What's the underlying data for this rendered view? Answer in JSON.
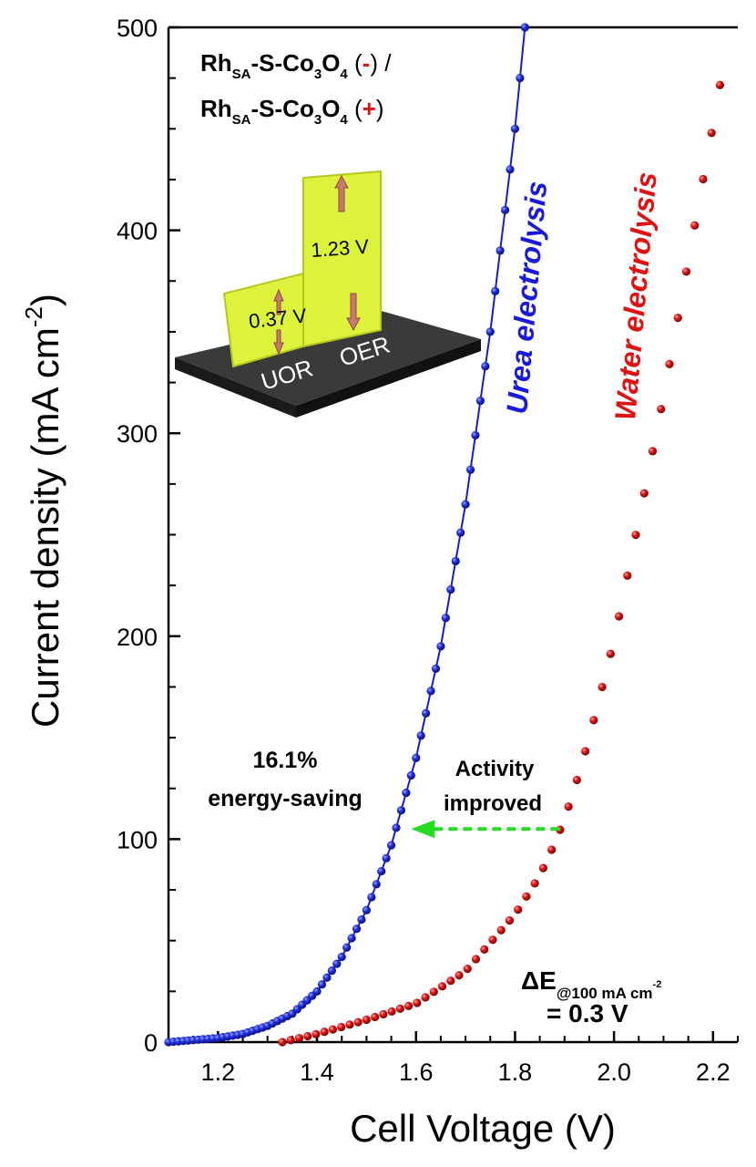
{
  "chart_data": {
    "type": "scatter",
    "xlabel": "Cell Voltage (V)",
    "ylabel_main": "Current density (mA cm",
    "ylabel_sup": "-2",
    "ylabel_end": ")",
    "xlim": [
      1.1,
      2.25
    ],
    "ylim": [
      0,
      500
    ],
    "xticks": [
      1.2,
      1.4,
      1.6,
      1.8,
      2.0,
      2.2
    ],
    "xtick_labels": [
      "1.2",
      "1.4",
      "1.6",
      "1.8",
      "2.0",
      "2.2"
    ],
    "yticks": [
      0,
      100,
      200,
      300,
      400,
      500
    ],
    "ytick_labels": [
      "0",
      "100",
      "200",
      "300",
      "400",
      "500"
    ],
    "series": [
      {
        "name": "Urea electrolysis",
        "color": "#1a1adc",
        "connected": true,
        "curve": [
          [
            1.1,
            0
          ],
          [
            1.2,
            2
          ],
          [
            1.25,
            4
          ],
          [
            1.3,
            8
          ],
          [
            1.35,
            14
          ],
          [
            1.4,
            25
          ],
          [
            1.45,
            42
          ],
          [
            1.5,
            65
          ],
          [
            1.55,
            97
          ],
          [
            1.6,
            140
          ],
          [
            1.65,
            195
          ],
          [
            1.7,
            265
          ],
          [
            1.75,
            350
          ],
          [
            1.8,
            450
          ],
          [
            1.82,
            500
          ]
        ],
        "start": 1.1,
        "end": 1.82,
        "step": 0.01
      },
      {
        "name": "Water electrolysis",
        "color": "#e01212",
        "connected": false,
        "curve": [
          [
            1.33,
            0
          ],
          [
            1.4,
            4
          ],
          [
            1.5,
            11
          ],
          [
            1.6,
            19
          ],
          [
            1.7,
            35
          ],
          [
            1.8,
            63
          ],
          [
            1.85,
            82
          ],
          [
            1.88,
            98
          ],
          [
            1.9,
            110
          ],
          [
            1.92,
            125
          ],
          [
            1.95,
            150
          ],
          [
            2.0,
            198
          ],
          [
            2.05,
            257
          ],
          [
            2.1,
            318
          ],
          [
            2.15,
            385
          ],
          [
            2.2,
            452
          ],
          [
            2.22,
            480
          ]
        ],
        "start": 1.33,
        "end": 2.22,
        "step": 0.017
      }
    ],
    "annotations": {
      "title_line1": {
        "main": "Rh",
        "sub1": "SA",
        "mid": "-S-Co",
        "sub2": "3",
        "o": "O",
        "sub3": "4",
        "open": " (",
        "sign": "-",
        "close": ") /"
      },
      "title_line2": {
        "main": "Rh",
        "sub1": "SA",
        "mid": "-S-Co",
        "sub2": "3",
        "o": "O",
        "sub3": "4",
        "open": " (",
        "sign": "+",
        "close": ")"
      },
      "urea_label": "Urea electrolysis",
      "water_label": "Water electrolysis",
      "saving_line1": "16.1%",
      "saving_line2": "energy-saving",
      "activity_line1": "Activity",
      "activity_line2": "improved",
      "arrow_from": [
        1.89,
        105
      ],
      "arrow_to": [
        1.59,
        105
      ],
      "delta_main": "ΔE",
      "delta_sub": "@100 mA cm",
      "delta_sup": "-2",
      "delta_value": "= 0.3 V",
      "inset_uor_voltage": "0.37 V",
      "inset_oer_voltage": "1.23 V",
      "inset_uor_label": "UOR",
      "inset_oer_label": "OER"
    },
    "colors": {
      "axis": "#000000",
      "arrow": "#22dd22",
      "inset_block": "#ddf23a",
      "inset_block_side": "#b5c71f",
      "inset_base_top": "#3a3a3a",
      "inset_base_front": "#1a1a1a",
      "inset_arrow": "#c97a6e"
    }
  }
}
